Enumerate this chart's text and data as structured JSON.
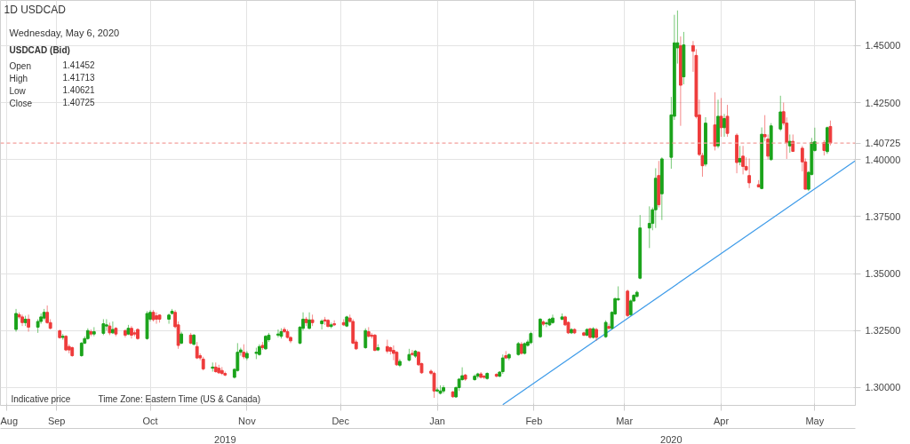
{
  "chart_data": {
    "type": "candlestick",
    "title": "1D   USDCAD",
    "x": [
      "2019-08-19",
      "2019-08-20",
      "2019-08-21",
      "2019-08-22",
      "2019-08-23",
      "2019-08-26",
      "2019-08-27",
      "2019-08-28",
      "2019-08-29",
      "2019-08-30",
      "2019-09-02",
      "2019-09-03",
      "2019-09-04",
      "2019-09-05",
      "2019-09-06",
      "2019-09-09",
      "2019-09-10",
      "2019-09-11",
      "2019-09-12",
      "2019-09-13",
      "2019-09-16",
      "2019-09-17",
      "2019-09-18",
      "2019-09-19",
      "2019-09-20",
      "2019-09-23",
      "2019-09-24",
      "2019-09-25",
      "2019-09-26",
      "2019-09-27",
      "2019-09-30",
      "2019-10-01",
      "2019-10-02",
      "2019-10-03",
      "2019-10-04",
      "2019-10-07",
      "2019-10-08",
      "2019-10-09",
      "2019-10-10",
      "2019-10-11",
      "2019-10-14",
      "2019-10-15",
      "2019-10-16",
      "2019-10-17",
      "2019-10-18",
      "2019-10-21",
      "2019-10-22",
      "2019-10-23",
      "2019-10-24",
      "2019-10-25",
      "2019-10-28",
      "2019-10-29",
      "2019-10-30",
      "2019-10-31",
      "2019-11-01",
      "2019-11-04",
      "2019-11-05",
      "2019-11-06",
      "2019-11-07",
      "2019-11-08",
      "2019-11-11",
      "2019-11-12",
      "2019-11-13",
      "2019-11-14",
      "2019-11-15",
      "2019-11-18",
      "2019-11-19",
      "2019-11-20",
      "2019-11-21",
      "2019-11-22",
      "2019-11-25",
      "2019-11-26",
      "2019-11-27",
      "2019-11-28",
      "2019-11-29",
      "2019-12-02",
      "2019-12-03",
      "2019-12-04",
      "2019-12-05",
      "2019-12-06",
      "2019-12-09",
      "2019-12-10",
      "2019-12-11",
      "2019-12-12",
      "2019-12-13",
      "2019-12-16",
      "2019-12-17",
      "2019-12-18",
      "2019-12-19",
      "2019-12-20",
      "2019-12-23",
      "2019-12-24",
      "2019-12-25",
      "2019-12-26",
      "2019-12-27",
      "2019-12-30",
      "2019-12-31",
      "2020-01-01",
      "2020-01-02",
      "2020-01-03",
      "2020-01-06",
      "2020-01-07",
      "2020-01-08",
      "2020-01-09",
      "2020-01-10",
      "2020-01-13",
      "2020-01-14",
      "2020-01-15",
      "2020-01-16",
      "2020-01-17",
      "2020-01-20",
      "2020-01-21",
      "2020-01-22",
      "2020-01-23",
      "2020-01-24",
      "2020-01-27",
      "2020-01-28",
      "2020-01-29",
      "2020-01-30",
      "2020-01-31",
      "2020-02-03",
      "2020-02-04",
      "2020-02-05",
      "2020-02-06",
      "2020-02-07",
      "2020-02-10",
      "2020-02-11",
      "2020-02-12",
      "2020-02-13",
      "2020-02-14",
      "2020-02-17",
      "2020-02-18",
      "2020-02-19",
      "2020-02-20",
      "2020-02-21",
      "2020-02-24",
      "2020-02-25",
      "2020-02-26",
      "2020-02-27",
      "2020-02-28",
      "2020-03-02",
      "2020-03-03",
      "2020-03-04",
      "2020-03-05",
      "2020-03-06",
      "2020-03-09",
      "2020-03-10",
      "2020-03-11",
      "2020-03-12",
      "2020-03-13",
      "2020-03-16",
      "2020-03-17",
      "2020-03-18",
      "2020-03-19",
      "2020-03-20",
      "2020-03-23",
      "2020-03-24",
      "2020-03-25",
      "2020-03-26",
      "2020-03-27",
      "2020-03-30",
      "2020-03-31",
      "2020-04-01",
      "2020-04-02",
      "2020-04-03",
      "2020-04-06",
      "2020-04-07",
      "2020-04-08",
      "2020-04-09",
      "2020-04-10",
      "2020-04-13",
      "2020-04-14",
      "2020-04-15",
      "2020-04-16",
      "2020-04-17",
      "2020-04-20",
      "2020-04-21",
      "2020-04-22",
      "2020-04-23",
      "2020-04-24",
      "2020-04-27",
      "2020-04-28",
      "2020-04-29",
      "2020-04-30",
      "2020-05-01",
      "2020-05-04",
      "2020-05-05",
      "2020-05-06"
    ],
    "ohlc": [
      [
        1.3255,
        1.3345,
        1.3245,
        1.3325
      ],
      [
        1.332,
        1.333,
        1.33,
        1.331
      ],
      [
        1.331,
        1.332,
        1.327,
        1.3285
      ],
      [
        1.3285,
        1.3315,
        1.327,
        1.33
      ],
      [
        1.33,
        1.332,
        1.3245,
        1.3265
      ],
      [
        1.3265,
        1.33,
        1.324,
        1.329
      ],
      [
        1.329,
        1.3325,
        1.328,
        1.331
      ],
      [
        1.3305,
        1.3345,
        1.3295,
        1.333
      ],
      [
        1.333,
        1.336,
        1.328,
        1.3285
      ],
      [
        1.3285,
        1.33,
        1.3255,
        1.326
      ],
      [
        1.3249,
        1.3255,
        1.3215,
        1.3219
      ],
      [
        1.322,
        1.3235,
        1.321,
        1.3225
      ],
      [
        1.3225,
        1.323,
        1.316,
        1.3165
      ],
      [
        1.318,
        1.319,
        1.315,
        1.3165
      ],
      [
        1.3175,
        1.318,
        1.3135,
        1.314
      ],
      [
        1.314,
        1.32,
        1.3135,
        1.3195
      ],
      [
        1.3195,
        1.3225,
        1.319,
        1.3215
      ],
      [
        1.3215,
        1.326,
        1.321,
        1.325
      ],
      [
        1.3245,
        1.3255,
        1.3225,
        1.3235
      ],
      [
        1.3235,
        1.3265,
        1.3225,
        1.3245
      ],
      [
        1.3238,
        1.33,
        1.323,
        1.328
      ],
      [
        1.327,
        1.33,
        1.325,
        1.3275
      ],
      [
        1.327,
        1.3285,
        1.323,
        1.324
      ],
      [
        1.324,
        1.329,
        1.3235,
        1.3255
      ],
      [
        1.326,
        1.3265,
        1.3225,
        1.3235
      ],
      [
        1.325,
        1.3255,
        1.322,
        1.323
      ],
      [
        1.3235,
        1.3275,
        1.323,
        1.326
      ],
      [
        1.326,
        1.327,
        1.3215,
        1.323
      ],
      [
        1.324,
        1.325,
        1.3225,
        1.3235
      ],
      [
        1.3255,
        1.326,
        1.321,
        1.3215
      ],
      [
        1.3215,
        1.3335,
        1.321,
        1.3325
      ],
      [
        1.33,
        1.334,
        1.329,
        1.333
      ],
      [
        1.333,
        1.334,
        1.329,
        1.3298
      ],
      [
        1.3315,
        1.333,
        1.328,
        1.33
      ],
      [
        1.3318,
        1.332,
        1.3285,
        1.33
      ],
      [
        1.33,
        1.3325,
        1.328,
        1.3318
      ],
      [
        1.3325,
        1.3345,
        1.332,
        1.3335
      ],
      [
        1.333,
        1.334,
        1.326,
        1.3267
      ],
      [
        1.3275,
        1.329,
        1.317,
        1.3185
      ],
      [
        1.3195,
        1.3245,
        1.319,
        1.3235
      ],
      [
        1.323,
        1.324,
        1.319,
        1.3195
      ],
      [
        1.319,
        1.3235,
        1.3185,
        1.323
      ],
      [
        1.318,
        1.32,
        1.3125,
        1.313
      ],
      [
        1.314,
        1.315,
        1.312,
        1.313
      ],
      [
        1.3125,
        1.3135,
        1.3075,
        1.3082
      ],
      [
        1.3085,
        1.311,
        1.307,
        1.309
      ],
      [
        1.309,
        1.311,
        1.3065,
        1.307
      ],
      [
        1.3085,
        1.31,
        1.306,
        1.3065
      ],
      [
        1.3075,
        1.309,
        1.3055,
        1.3062
      ],
      [
        1.3062,
        1.307,
        1.305,
        1.3055
      ],
      [
        1.3045,
        1.3085,
        1.304,
        1.308
      ],
      [
        1.3075,
        1.3195,
        1.307,
        1.3155
      ],
      [
        1.3155,
        1.3175,
        1.314,
        1.3165
      ],
      [
        1.3155,
        1.319,
        1.3125,
        1.3135
      ],
      [
        1.313,
        1.316,
        1.312,
        1.315
      ],
      [
        1.315,
        1.3175,
        1.3125,
        1.3155
      ],
      [
        1.3145,
        1.319,
        1.314,
        1.318
      ],
      [
        1.3185,
        1.32,
        1.3165,
        1.3175
      ],
      [
        1.317,
        1.323,
        1.3165,
        1.3225
      ],
      [
        1.321,
        1.324,
        1.32,
        1.323
      ],
      [
        1.323,
        1.3255,
        1.322,
        1.3235
      ],
      [
        1.3225,
        1.326,
        1.3215,
        1.3245
      ],
      [
        1.3255,
        1.3265,
        1.324,
        1.3245
      ],
      [
        1.3245,
        1.3255,
        1.3215,
        1.322
      ],
      [
        1.322,
        1.3225,
        1.3195,
        1.3205
      ],
      [
        1.3195,
        1.327,
        1.319,
        1.3265
      ],
      [
        1.326,
        1.333,
        1.325,
        1.33
      ],
      [
        1.33,
        1.331,
        1.327,
        1.3285
      ],
      [
        1.326,
        1.333,
        1.3255,
        1.3297
      ],
      [
        1.3297,
        1.332,
        1.327,
        1.3285
      ],
      [
        1.328,
        1.33,
        1.3255,
        1.3292
      ],
      [
        1.3297,
        1.331,
        1.3275,
        1.3292
      ],
      [
        1.3295,
        1.33,
        1.3265,
        1.3268
      ],
      [
        1.3268,
        1.3285,
        1.326,
        1.3275
      ],
      [
        1.328,
        1.3295,
        1.327,
        1.3275
      ],
      [
        1.3285,
        1.33,
        1.327,
        1.3275
      ],
      [
        1.327,
        1.3315,
        1.3265,
        1.331
      ],
      [
        1.3305,
        1.332,
        1.3285,
        1.329
      ],
      [
        1.329,
        1.33,
        1.319,
        1.3195
      ],
      [
        1.32,
        1.321,
        1.3165,
        1.317
      ],
      [
        1.3175,
        1.326,
        1.317,
        1.325
      ],
      [
        1.3245,
        1.3265,
        1.322,
        1.3225
      ],
      [
        1.323,
        1.324,
        1.3215,
        1.3225
      ],
      [
        1.323,
        1.3235,
        1.316,
        1.3163
      ],
      [
        1.3165,
        1.319,
        1.316,
        1.3175
      ],
      [
        1.318,
        1.321,
        1.315,
        1.316
      ],
      [
        1.3175,
        1.318,
        1.3145,
        1.316
      ],
      [
        1.3163,
        1.3185,
        1.312,
        1.315
      ],
      [
        1.3155,
        1.316,
        1.3095,
        1.31
      ],
      [
        1.3098,
        1.3125,
        1.309,
        1.3115
      ],
      [
        1.312,
        1.317,
        1.3115,
        1.3145
      ],
      [
        1.315,
        1.3165,
        1.314,
        1.3145
      ],
      [
        1.3138,
        1.3165,
        1.313,
        1.316
      ],
      [
        1.3155,
        1.316,
        1.3095,
        1.31
      ],
      [
        1.3105,
        1.311,
        1.306,
        1.3065
      ],
      [
        1.3072,
        1.308,
        1.3055,
        1.3063
      ],
      [
        1.3063,
        1.307,
        1.2955,
        1.2985
      ],
      [
        1.2985,
        1.3,
        1.298,
        1.299
      ],
      [
        1.2975,
        1.301,
        1.297,
        1.2985
      ],
      [
        1.2985,
        1.301,
        1.2975,
        1.3
      ],
      [
        1.2981,
        1.2985,
        1.2955,
        1.296
      ],
      [
        1.2959,
        1.3005,
        1.2955,
        1.3
      ],
      [
        1.3,
        1.3042,
        1.2985,
        1.3037
      ],
      [
        1.3035,
        1.3089,
        1.303,
        1.3052
      ],
      [
        1.3055,
        1.306,
        1.303,
        1.3037
      ],
      [
        1.3035,
        1.3058,
        1.303,
        1.305
      ],
      [
        1.305,
        1.3065,
        1.304,
        1.306
      ],
      [
        1.306,
        1.3068,
        1.304,
        1.3045
      ],
      [
        1.305,
        1.3055,
        1.3038,
        1.3045
      ],
      [
        1.304,
        1.3067,
        1.3035,
        1.3062
      ],
      [
        1.3058,
        1.3063,
        1.3045,
        1.305
      ],
      [
        1.305,
        1.3072,
        1.3045,
        1.3068
      ],
      [
        1.307,
        1.3145,
        1.306,
        1.313
      ],
      [
        1.314,
        1.316,
        1.3125,
        1.313
      ],
      [
        1.313,
        1.315,
        1.312,
        1.3145
      ],
      [
        1.3145,
        1.32,
        1.314,
        1.3193
      ],
      [
        1.319,
        1.32,
        1.3145,
        1.315
      ],
      [
        1.315,
        1.3198,
        1.3145,
        1.3193
      ],
      [
        1.3185,
        1.321,
        1.318,
        1.32
      ],
      [
        1.3197,
        1.3245,
        1.319,
        1.3237
      ],
      [
        1.3223,
        1.3305,
        1.3218,
        1.33
      ],
      [
        1.3288,
        1.3295,
        1.327,
        1.3278
      ],
      [
        1.328,
        1.329,
        1.3265,
        1.3283
      ],
      [
        1.3275,
        1.3305,
        1.327,
        1.33
      ],
      [
        1.3285,
        1.332,
        1.328,
        1.3305
      ],
      [
        1.33,
        1.3325,
        1.3295,
        1.331
      ],
      [
        1.331,
        1.3315,
        1.327,
        1.3275
      ],
      [
        1.3286,
        1.329,
        1.3235,
        1.324
      ],
      [
        1.324,
        1.326,
        1.3235,
        1.3255
      ],
      [
        1.3255,
        1.326,
        1.3235,
        1.324
      ],
      [
        1.324,
        1.3245,
        1.3225,
        1.323
      ],
      [
        1.323,
        1.326,
        1.3225,
        1.3255
      ],
      [
        1.3258,
        1.3262,
        1.3215,
        1.322
      ],
      [
        1.322,
        1.3265,
        1.3215,
        1.3258
      ],
      [
        1.3255,
        1.3262,
        1.3205,
        1.322
      ],
      [
        1.3223,
        1.3295,
        1.3218,
        1.3286
      ],
      [
        1.3268,
        1.328,
        1.3255,
        1.326
      ],
      [
        1.326,
        1.3335,
        1.3255,
        1.333
      ],
      [
        1.3323,
        1.3395,
        1.3318,
        1.339
      ],
      [
        1.3385,
        1.3444,
        1.338,
        1.339
      ],
      [
        1.3423,
        1.343,
        1.331,
        1.3316
      ],
      [
        1.332,
        1.3387,
        1.3315,
        1.338
      ],
      [
        1.338,
        1.341,
        1.3375,
        1.3405
      ],
      [
        1.34,
        1.3425,
        1.3395,
        1.3418
      ],
      [
        1.348,
        1.3757,
        1.3475,
        1.37
      ],
      [
        1.37,
        1.3795,
        1.3612,
        1.372
      ],
      [
        1.372,
        1.379,
        1.369,
        1.378
      ],
      [
        1.378,
        1.3962,
        1.37,
        1.3918
      ],
      [
        1.393,
        1.3994,
        1.379,
        1.3802
      ],
      [
        1.385,
        1.401,
        1.3735,
        1.4003
      ],
      [
        1.401,
        1.4275,
        1.396,
        1.4196
      ],
      [
        1.419,
        1.4635,
        1.4174,
        1.4512
      ],
      [
        1.449,
        1.4654,
        1.4421,
        1.4512
      ],
      [
        1.45,
        1.454,
        1.4148,
        1.4326
      ],
      [
        1.4363,
        1.456,
        1.433,
        1.4503
      ],
      [
        1.45,
        1.452,
        1.4385,
        1.4475
      ],
      [
        1.4457,
        1.4484,
        1.418,
        1.4189
      ],
      [
        1.4196,
        1.4263,
        1.4015,
        1.4022
      ],
      [
        1.4018,
        1.403,
        1.3925,
        1.3973
      ],
      [
        1.398,
        1.4186,
        1.397,
        1.416
      ],
      [
        1.4152,
        1.4295,
        1.404,
        1.4059
      ],
      [
        1.406,
        1.4263,
        1.405,
        1.419
      ],
      [
        1.419,
        1.427,
        1.41,
        1.414
      ],
      [
        1.414,
        1.42,
        1.41,
        1.418
      ],
      [
        1.419,
        1.424,
        1.41,
        1.4115
      ],
      [
        1.4107,
        1.4115,
        1.394,
        1.3987
      ],
      [
        1.399,
        1.406,
        1.3975,
        1.4005
      ],
      [
        1.4015,
        1.406,
        1.3935,
        1.397
      ],
      [
        1.397,
        1.401,
        1.395,
        1.3955
      ],
      [
        1.393,
        1.4005,
        1.3875,
        1.3898
      ],
      [
        1.389,
        1.391,
        1.3878,
        1.388
      ],
      [
        1.3873,
        1.4141,
        1.387,
        1.4111
      ],
      [
        1.411,
        1.4195,
        1.408,
        1.41
      ],
      [
        1.409,
        1.411,
        1.4,
        1.4015
      ],
      [
        1.4,
        1.416,
        1.3995,
        1.4148
      ],
      [
        1.4134,
        1.428,
        1.4125,
        1.4209
      ],
      [
        1.421,
        1.425,
        1.415,
        1.416
      ],
      [
        1.416,
        1.4185,
        1.4003,
        1.4074
      ],
      [
        1.406,
        1.411,
        1.403,
        1.408
      ],
      [
        1.408,
        1.411,
        1.4035,
        1.4036
      ],
      [
        1.405,
        1.406,
        1.3948,
        1.399
      ],
      [
        1.399,
        1.4005,
        1.387,
        1.387
      ],
      [
        1.387,
        1.395,
        1.3862,
        1.3944
      ],
      [
        1.3935,
        1.4095,
        1.393,
        1.4075
      ],
      [
        1.404,
        1.414,
        1.4035,
        1.4078
      ],
      [
        1.4075,
        1.4085,
        1.4018,
        1.404
      ],
      [
        1.4035,
        1.4145,
        1.4025,
        1.414
      ],
      [
        1.41452,
        1.41713,
        1.40621,
        1.40725
      ]
    ],
    "series": [
      {
        "type": "line",
        "color": "#3d9be9",
        "x": [
          "2020-01-22",
          "2020-05-14"
        ],
        "values": [
          1.2925,
          1.3995
        ]
      }
    ],
    "xlim": [
      "2019-08-14",
      "2020-05-14"
    ],
    "xticks": [
      {
        "value": "2019-08-16",
        "label": "Aug"
      },
      {
        "value": "2019-09-01",
        "label": "Sep"
      },
      {
        "value": "2019-10-01",
        "label": "Oct"
      },
      {
        "value": "2019-11-01",
        "label": "Nov"
      },
      {
        "value": "2019-12-01",
        "label": "Dec"
      },
      {
        "value": "2020-01-01",
        "label": "Jan"
      },
      {
        "value": "2020-02-01",
        "label": "Feb"
      },
      {
        "value": "2020-03-01",
        "label": "Mar"
      },
      {
        "value": "2020-04-01",
        "label": "Apr"
      },
      {
        "value": "2020-05-01",
        "label": "May"
      }
    ],
    "ylim": [
      1.2922,
      1.4698
    ],
    "yticks": [
      {
        "value": 1.3,
        "label": "1.30000"
      },
      {
        "value": 1.325,
        "label": "1.32500"
      },
      {
        "value": 1.35,
        "label": "1.35000"
      },
      {
        "value": 1.375,
        "label": "1.37500"
      },
      {
        "value": 1.4,
        "label": "1.40000"
      },
      {
        "value": 1.425,
        "label": "1.42500"
      },
      {
        "value": 1.45,
        "label": "1.45000"
      }
    ],
    "grid": true,
    "ref_lines": [
      {
        "axis": "y",
        "value": 1.40725,
        "label": "1.40725",
        "color": "#f4a09c",
        "line_style": "dashed"
      }
    ],
    "x2lim": [
      "2019-08-14",
      "2020-05-14"
    ],
    "x2ticks": [
      {
        "value": "2019-10-25",
        "label": "2019"
      },
      {
        "value": "2020-03-16",
        "label": "2020"
      }
    ],
    "annotations": [
      "Wednesday, May 6, 2020",
      "USDCAD (Bid)",
      "Open",
      "1.41452",
      "High",
      "1.41713",
      "Low",
      "1.40621",
      "Close",
      "1.40725",
      "Indicative price",
      "Time Zone: Eastern Time (US & Canada)"
    ]
  }
}
